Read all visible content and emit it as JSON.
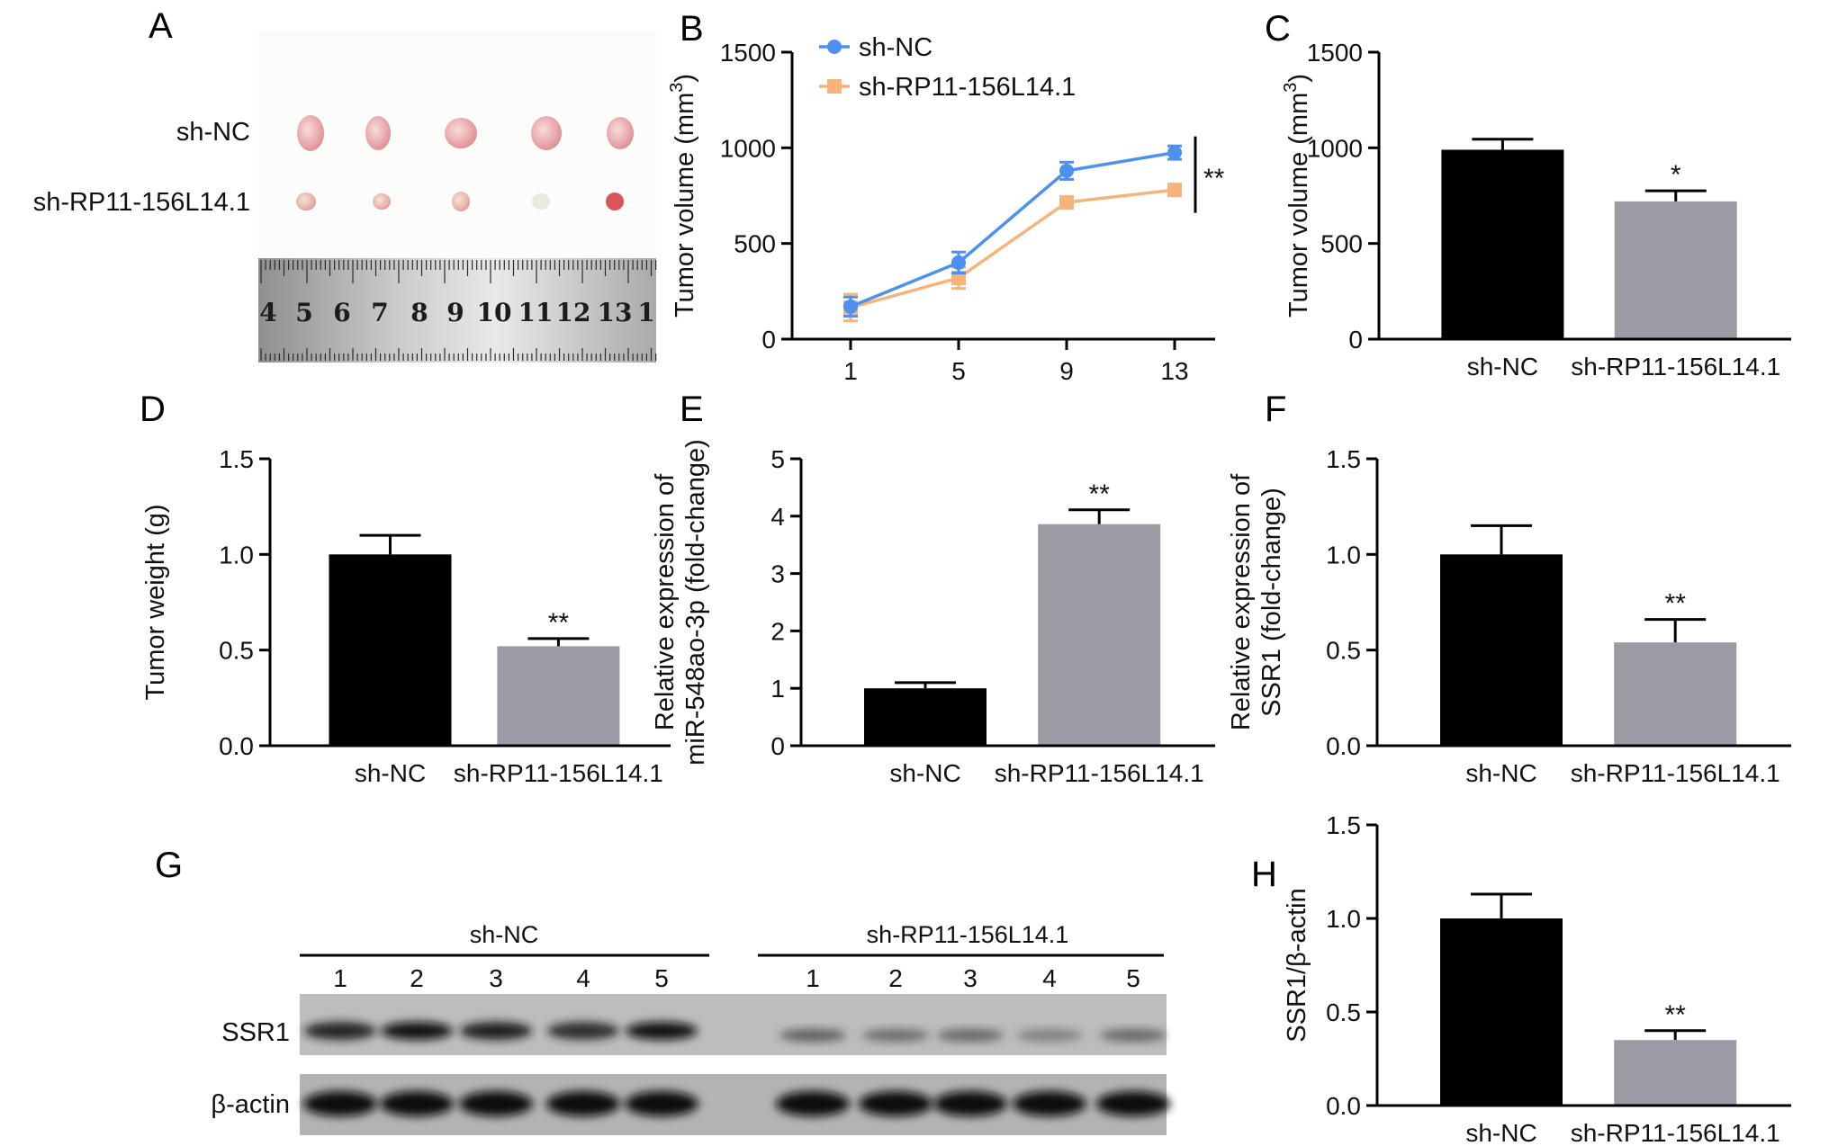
{
  "colors": {
    "black_bar": "#000000",
    "gray_bar": "#9b9ba3",
    "line_nc": "#4d90f0",
    "line_rp": "#f7b37a",
    "axis": "#000000"
  },
  "panels": {
    "A": {
      "letter": "A",
      "row_labels": [
        "sh-NC",
        "sh-RP11-156L14.1"
      ],
      "ruler_numbers": [
        "4",
        "5",
        "6",
        "7",
        "8",
        "9",
        "10",
        "11",
        "12",
        "13",
        "1"
      ]
    },
    "B": {
      "letter": "B"
    },
    "C": {
      "letter": "C"
    },
    "D": {
      "letter": "D"
    },
    "E": {
      "letter": "E"
    },
    "F": {
      "letter": "F"
    },
    "G": {
      "letter": "G",
      "group_labels": [
        "sh-NC",
        "sh-RP11-156L14.1"
      ],
      "lane_numbers": [
        "1",
        "2",
        "3",
        "4",
        "5"
      ],
      "row_labels": [
        "SSR1",
        "β-actin"
      ],
      "band_intensity": {
        "SSR1_sh_NC": [
          0.85,
          0.95,
          0.9,
          0.8,
          0.95
        ],
        "SSR1_sh_RP": [
          0.55,
          0.45,
          0.5,
          0.3,
          0.5
        ],
        "beta_actin_sh_NC": [
          1,
          1,
          1,
          1,
          1
        ],
        "beta_actin_sh_RP": [
          1,
          1,
          1,
          1,
          1
        ]
      }
    },
    "H": {
      "letter": "H"
    }
  },
  "chart_data": [
    {
      "id": "B",
      "type": "line",
      "x": [
        1,
        5,
        9,
        13
      ],
      "xticks": [
        "1",
        "5",
        "9",
        "13"
      ],
      "ylabel": "Tumor volume (mm",
      "ylabel_sup": "3",
      "ylabel_end": ")",
      "ylim": [
        0,
        1500
      ],
      "yticks": [
        "0",
        "500",
        "1000",
        "1500"
      ],
      "series": [
        {
          "name": "sh-NC",
          "values": [
            170,
            400,
            880,
            975
          ],
          "errors": [
            50,
            55,
            45,
            35
          ]
        },
        {
          "name": "sh-RP11-156L14.1",
          "values": [
            165,
            320,
            715,
            780
          ],
          "errors": [
            70,
            55,
            30,
            30
          ]
        }
      ],
      "significance": "**",
      "legend": "top-left"
    },
    {
      "id": "C",
      "type": "bar",
      "categories": [
        "sh-NC",
        "sh-RP11-156L14.1"
      ],
      "values": [
        990,
        720
      ],
      "errors": [
        55,
        55
      ],
      "significance": [
        "",
        "*"
      ],
      "ylabel": "Tumor volume (mm",
      "ylabel_sup": "3",
      "ylabel_end": ")",
      "ylim": [
        0,
        1500
      ],
      "yticks": [
        "0",
        "500",
        "1000",
        "1500"
      ]
    },
    {
      "id": "D",
      "type": "bar",
      "categories": [
        "sh-NC",
        "sh-RP11-156L14.1"
      ],
      "values": [
        1.0,
        0.52
      ],
      "errors": [
        0.1,
        0.04
      ],
      "significance": [
        "",
        "**"
      ],
      "ylabel": "Tumor weight (g)",
      "ylim": [
        0,
        1.5
      ],
      "yticks": [
        "0.0",
        "0.5",
        "1.0",
        "1.5"
      ]
    },
    {
      "id": "E",
      "type": "bar",
      "categories": [
        "sh-NC",
        "sh-RP11-156L14.1"
      ],
      "values": [
        1.0,
        3.86
      ],
      "errors": [
        0.1,
        0.25
      ],
      "significance": [
        "",
        "**"
      ],
      "ylabel": "Relative expression of",
      "ylabel2": "miR-548ao-3p (fold-change)",
      "ylim": [
        0,
        5
      ],
      "yticks": [
        "0",
        "1",
        "2",
        "3",
        "4",
        "5"
      ]
    },
    {
      "id": "F",
      "type": "bar",
      "categories": [
        "sh-NC",
        "sh-RP11-156L14.1"
      ],
      "values": [
        1.0,
        0.54
      ],
      "errors": [
        0.15,
        0.12
      ],
      "significance": [
        "",
        "**"
      ],
      "ylabel": "Relative expression of",
      "ylabel2": "SSR1 (fold-change)",
      "ylim": [
        0,
        1.5
      ],
      "yticks": [
        "0.0",
        "0.5",
        "1.0",
        "1.5"
      ]
    },
    {
      "id": "H",
      "type": "bar",
      "categories": [
        "sh-NC",
        "sh-RP11-156L14.1"
      ],
      "values": [
        1.0,
        0.35
      ],
      "errors": [
        0.13,
        0.05
      ],
      "significance": [
        "",
        "**"
      ],
      "ylabel": "SSR1/β-actin",
      "ylim": [
        0,
        1.5
      ],
      "yticks": [
        "0.0",
        "0.5",
        "1.0",
        "1.5"
      ]
    }
  ]
}
